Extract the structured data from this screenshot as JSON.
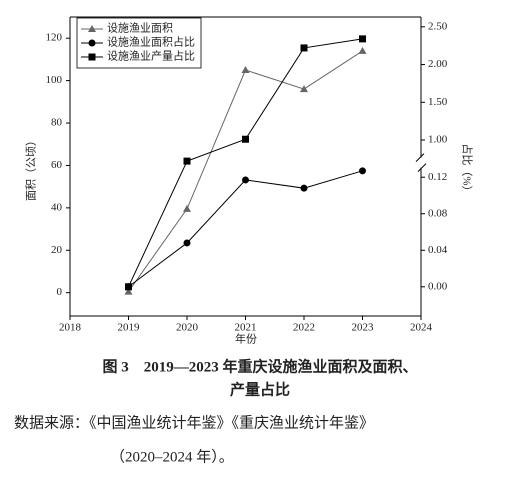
{
  "chart_data": {
    "type": "line",
    "xlabel": "年份",
    "ylabel": "面积（公顷）",
    "y2label": "占比（%）",
    "x": [
      2019,
      2020,
      2021,
      2022,
      2023
    ],
    "series": [
      {
        "name": "设施渔业面积",
        "color": "#666666",
        "marker": "triangle",
        "values": [
          0.5,
          39.5,
          105,
          96,
          114
        ]
      },
      {
        "name": "设施渔业面积占比",
        "color": "#000000",
        "marker": "circle",
        "axis": "y2",
        "values": [
          0.0,
          0.048,
          0.117,
          0.108,
          0.127
        ]
      },
      {
        "name": "设施渔业产量占比",
        "color": "#000000",
        "marker": "square",
        "axis": "y2",
        "values": [
          0.0,
          0.72,
          1.01,
          2.22,
          2.34
        ]
      }
    ],
    "xlim": [
      2018,
      2024
    ],
    "xticks": [
      2018,
      2019,
      2020,
      2021,
      2022,
      2023,
      2024
    ],
    "ylim": [
      -11,
      130
    ],
    "yticks": [
      0,
      20,
      40,
      60,
      80,
      100,
      120
    ],
    "y2lim": [
      -0.032,
      2.63
    ],
    "y2_break": [
      0.136,
      0.7
    ],
    "y2ticks": [
      {
        "value": 0,
        "label": "0.00"
      },
      {
        "value": 0.04,
        "label": "0.04"
      },
      {
        "value": 0.08,
        "label": "0.08"
      },
      {
        "value": 0.12,
        "label": "0.12"
      },
      {
        "value": 1,
        "label": "1.00"
      },
      {
        "value": 1.5,
        "label": "1.50"
      },
      {
        "value": 2,
        "label": "2.00"
      },
      {
        "value": 2.5,
        "label": "2.50"
      }
    ],
    "legend": "upper left",
    "caption": [
      "图 3　2019—2023 年重庆设施渔业面积及面积、",
      "产量占比"
    ],
    "source": [
      "数据来源：《中国渔业统计年鉴》《重庆渔业统计年鉴》",
      "（2020–2024 年）。"
    ]
  }
}
